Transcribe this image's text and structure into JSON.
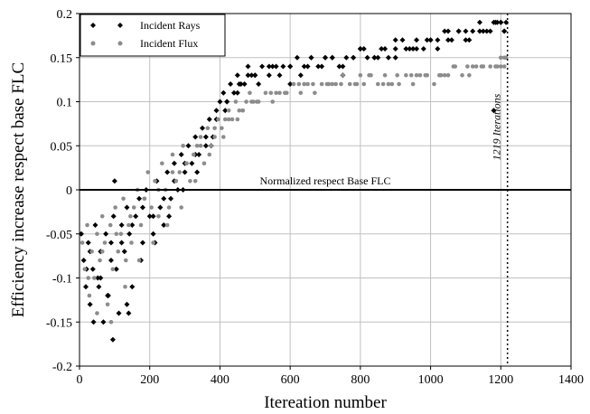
{
  "chart_data": {
    "type": "scatter",
    "title": "",
    "xlabel": "Itereation number",
    "ylabel": "Efficiency increase respect base FLC",
    "xlim": [
      0,
      1400
    ],
    "ylim": [
      -0.2,
      0.2
    ],
    "xticks": [
      0,
      200,
      400,
      600,
      800,
      1000,
      1200,
      1400
    ],
    "yticks": [
      -0.2,
      -0.15,
      -0.1,
      -0.05,
      0,
      0.05,
      0.1,
      0.15,
      0.2
    ],
    "xtick_labels": [
      "0",
      "200",
      "400",
      "600",
      "800",
      "1000",
      "1200",
      "1400"
    ],
    "ytick_labels": [
      "-0.2",
      "-0.15",
      "-0.1",
      "-0.05",
      "0",
      "0.05",
      "0.1",
      "0.15",
      "0.2"
    ],
    "grid": true,
    "legend_position": "top-left",
    "colors": {
      "Incident Rays": "#000000",
      "Incident Flux": "#8c8c8c",
      "grid": "#c0c0c0"
    },
    "annotations": {
      "zero_line_label": "Normalized respect Base FLC",
      "iteration_line_label": "1219 Iterations",
      "iteration_line_x": 1219
    },
    "series": [
      {
        "name": "Incident Rays",
        "marker": "diamond",
        "x": [
          5,
          12,
          18,
          25,
          30,
          38,
          45,
          52,
          60,
          68,
          75,
          82,
          90,
          97,
          105,
          112,
          120,
          128,
          135,
          142,
          150,
          160,
          170,
          180,
          190,
          200,
          210,
          220,
          230,
          240,
          250,
          260,
          270,
          280,
          290,
          300,
          310,
          320,
          330,
          340,
          350,
          360,
          370,
          380,
          390,
          400,
          410,
          420,
          430,
          440,
          450,
          460,
          470,
          480,
          490,
          500,
          520,
          540,
          560,
          580,
          600,
          620,
          640,
          660,
          680,
          700,
          720,
          740,
          760,
          780,
          800,
          820,
          840,
          860,
          880,
          900,
          920,
          940,
          960,
          980,
          1000,
          1020,
          1040,
          1060,
          1080,
          1100,
          1120,
          1140,
          1160,
          1180,
          1190,
          1200,
          1210,
          1215,
          30,
          60,
          90,
          120,
          150,
          180,
          210,
          240,
          270,
          300,
          330,
          360,
          390,
          420,
          450,
          480,
          510,
          540,
          570,
          600,
          630,
          660,
          690,
          720,
          750,
          780,
          810,
          840,
          870,
          900,
          930,
          960,
          990,
          1020,
          1050,
          1080,
          1110,
          1140,
          1170,
          1200,
          20,
          55,
          95,
          135,
          175,
          215,
          255,
          295,
          335,
          375,
          415,
          455,
          500,
          550,
          600,
          650,
          700,
          750,
          800,
          850,
          900,
          950,
          1000,
          1050,
          1100,
          1150,
          1185,
          1210,
          40,
          80,
          100,
          140,
          1180
        ],
        "y": [
          -0.05,
          -0.08,
          -0.11,
          -0.06,
          -0.13,
          -0.09,
          -0.04,
          -0.1,
          -0.07,
          -0.15,
          -0.05,
          -0.12,
          -0.06,
          -0.03,
          -0.09,
          -0.14,
          -0.04,
          -0.07,
          -0.02,
          -0.05,
          -0.11,
          -0.03,
          -0.01,
          -0.06,
          0.0,
          -0.03,
          -0.05,
          0.01,
          -0.02,
          -0.04,
          0.02,
          -0.01,
          0.03,
          0.0,
          0.04,
          0.02,
          0.05,
          0.03,
          0.06,
          0.04,
          0.07,
          0.05,
          0.08,
          0.06,
          0.09,
          0.1,
          0.11,
          0.1,
          0.12,
          0.11,
          0.13,
          0.12,
          0.12,
          0.14,
          0.13,
          0.13,
          0.14,
          0.13,
          0.14,
          0.14,
          0.14,
          0.15,
          0.14,
          0.15,
          0.14,
          0.15,
          0.15,
          0.14,
          0.15,
          0.15,
          0.16,
          0.15,
          0.15,
          0.16,
          0.15,
          0.16,
          0.17,
          0.16,
          0.17,
          0.16,
          0.17,
          0.17,
          0.18,
          0.17,
          0.18,
          0.18,
          0.18,
          0.19,
          0.18,
          0.19,
          0.19,
          0.19,
          0.18,
          0.19,
          -0.07,
          -0.1,
          -0.08,
          -0.06,
          -0.04,
          -0.02,
          -0.03,
          -0.01,
          0.01,
          0.03,
          0.04,
          0.06,
          0.08,
          0.1,
          0.11,
          0.13,
          0.12,
          0.14,
          0.13,
          0.14,
          0.13,
          0.15,
          0.14,
          0.15,
          0.14,
          0.15,
          0.16,
          0.15,
          0.16,
          0.15,
          0.16,
          0.16,
          0.17,
          0.16,
          0.17,
          0.18,
          0.17,
          0.18,
          0.18,
          0.19,
          -0.09,
          -0.11,
          -0.17,
          -0.13,
          -0.08,
          -0.06,
          -0.03,
          0.0,
          0.02,
          0.05,
          0.09,
          0.12,
          0.13,
          0.14,
          0.12,
          0.14,
          0.15,
          0.13,
          0.16,
          0.15,
          0.17,
          0.16,
          0.17,
          0.18,
          0.17,
          0.18,
          0.19,
          0.18,
          -0.15,
          -0.12,
          0.01,
          -0.14,
          0.09
        ]
      },
      {
        "name": "Incident Flux",
        "marker": "circle",
        "x": [
          8,
          15,
          22,
          28,
          35,
          42,
          50,
          58,
          65,
          72,
          80,
          88,
          95,
          102,
          110,
          118,
          125,
          132,
          140,
          148,
          155,
          165,
          175,
          185,
          195,
          205,
          215,
          225,
          235,
          245,
          255,
          265,
          275,
          285,
          295,
          305,
          315,
          325,
          335,
          345,
          355,
          365,
          375,
          385,
          395,
          405,
          415,
          425,
          435,
          445,
          455,
          465,
          475,
          485,
          495,
          510,
          530,
          550,
          570,
          590,
          610,
          630,
          650,
          670,
          690,
          710,
          730,
          750,
          770,
          790,
          810,
          830,
          850,
          870,
          890,
          910,
          930,
          950,
          970,
          990,
          1010,
          1030,
          1050,
          1070,
          1090,
          1110,
          1130,
          1150,
          1170,
          1190,
          1200,
          1210,
          1215,
          25,
          65,
          105,
          145,
          185,
          225,
          265,
          305,
          345,
          385,
          425,
          465,
          505,
          545,
          585,
          625,
          665,
          705,
          745,
          785,
          825,
          865,
          905,
          945,
          985,
          1025,
          1065,
          1105,
          1145,
          1185,
          50,
          90,
          130,
          170,
          210,
          250,
          290,
          330,
          370,
          410,
          450,
          490,
          560,
          640,
          720,
          800,
          880,
          960,
          1040,
          1120,
          1200,
          1210
        ],
        "y": [
          -0.06,
          -0.09,
          -0.04,
          -0.12,
          -0.07,
          -0.1,
          -0.05,
          -0.08,
          -0.03,
          -0.06,
          -0.13,
          -0.04,
          -0.09,
          -0.02,
          -0.07,
          -0.05,
          -0.01,
          -0.08,
          -0.04,
          -0.06,
          -0.02,
          0.0,
          -0.04,
          -0.01,
          0.02,
          -0.02,
          0.01,
          -0.03,
          0.03,
          0.0,
          -0.02,
          0.04,
          0.01,
          0.02,
          0.05,
          0.03,
          0.01,
          0.04,
          0.05,
          0.06,
          0.03,
          0.07,
          0.05,
          0.06,
          0.08,
          0.07,
          0.08,
          0.09,
          0.08,
          0.1,
          0.09,
          0.09,
          0.1,
          0.11,
          0.1,
          0.1,
          0.11,
          0.1,
          0.11,
          0.11,
          0.12,
          0.11,
          0.12,
          0.11,
          0.12,
          0.12,
          0.12,
          0.13,
          0.12,
          0.12,
          0.12,
          0.13,
          0.12,
          0.13,
          0.12,
          0.12,
          0.13,
          0.12,
          0.13,
          0.13,
          0.12,
          0.13,
          0.13,
          0.14,
          0.13,
          0.13,
          0.14,
          0.14,
          0.14,
          0.14,
          0.15,
          0.14,
          0.15,
          -0.1,
          -0.07,
          -0.05,
          -0.03,
          -0.01,
          0.0,
          0.02,
          0.03,
          0.05,
          0.07,
          0.08,
          0.09,
          0.1,
          0.11,
          0.11,
          0.12,
          0.12,
          0.12,
          0.12,
          0.12,
          0.13,
          0.12,
          0.13,
          0.13,
          0.13,
          0.13,
          0.14,
          0.14,
          0.14,
          0.14,
          -0.14,
          -0.15,
          -0.11,
          -0.08,
          -0.06,
          -0.04,
          -0.02,
          0.01,
          0.04,
          0.06,
          0.08,
          0.1,
          0.11,
          0.12,
          0.12,
          0.13,
          0.12,
          0.13,
          0.13,
          0.14,
          0.14,
          0.15
        ]
      }
    ]
  }
}
